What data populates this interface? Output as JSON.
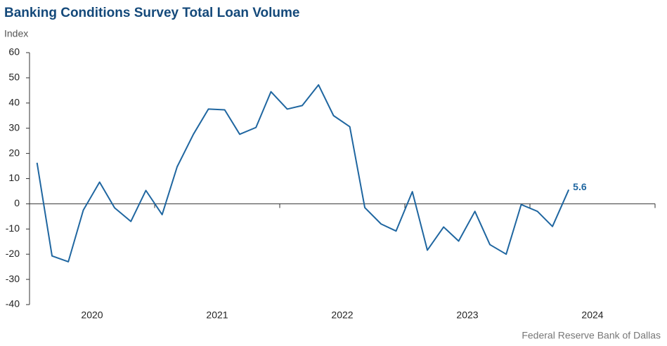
{
  "chart_data": {
    "type": "line",
    "title": "Banking Conditions Survey Total Loan Volume",
    "y_label": "Index",
    "source": "Federal Reserve Bank of Dallas",
    "xlim": [
      2020,
      2025
    ],
    "xticks": [
      2020,
      2021,
      2022,
      2023,
      2024,
      2025
    ],
    "year_labels": [
      "2020",
      "2021",
      "2022",
      "2023",
      "2024"
    ],
    "ylim": [
      -40,
      60
    ],
    "yticks": [
      -40,
      -30,
      -20,
      -10,
      0,
      10,
      20,
      30,
      40,
      50,
      60
    ],
    "series": [
      {
        "name": "Total Loan Volume",
        "color": "#1f66a0",
        "x": [
          2020.06,
          2020.18,
          2020.31,
          2020.43,
          2020.56,
          2020.68,
          2020.81,
          2020.93,
          2021.06,
          2021.18,
          2021.31,
          2021.43,
          2021.56,
          2021.68,
          2021.81,
          2021.93,
          2022.06,
          2022.18,
          2022.31,
          2022.43,
          2022.56,
          2022.68,
          2022.81,
          2022.93,
          2023.06,
          2023.18,
          2023.31,
          2023.43,
          2023.56,
          2023.68,
          2023.81,
          2023.93,
          2024.06,
          2024.18,
          2024.31
        ],
        "values": [
          16.3,
          -20.7,
          -23,
          -2.5,
          8.6,
          -1.6,
          -7,
          5.3,
          -4.3,
          14.7,
          27.6,
          37.6,
          37.3,
          27.6,
          30.3,
          44.5,
          37.6,
          39,
          47.2,
          35,
          30.6,
          -1.5,
          -8,
          -10.8,
          4.8,
          -18.4,
          -9.2,
          -14.8,
          -3,
          -16.2,
          -20,
          -0.3,
          -3,
          -9,
          5.6
        ]
      }
    ]
  }
}
